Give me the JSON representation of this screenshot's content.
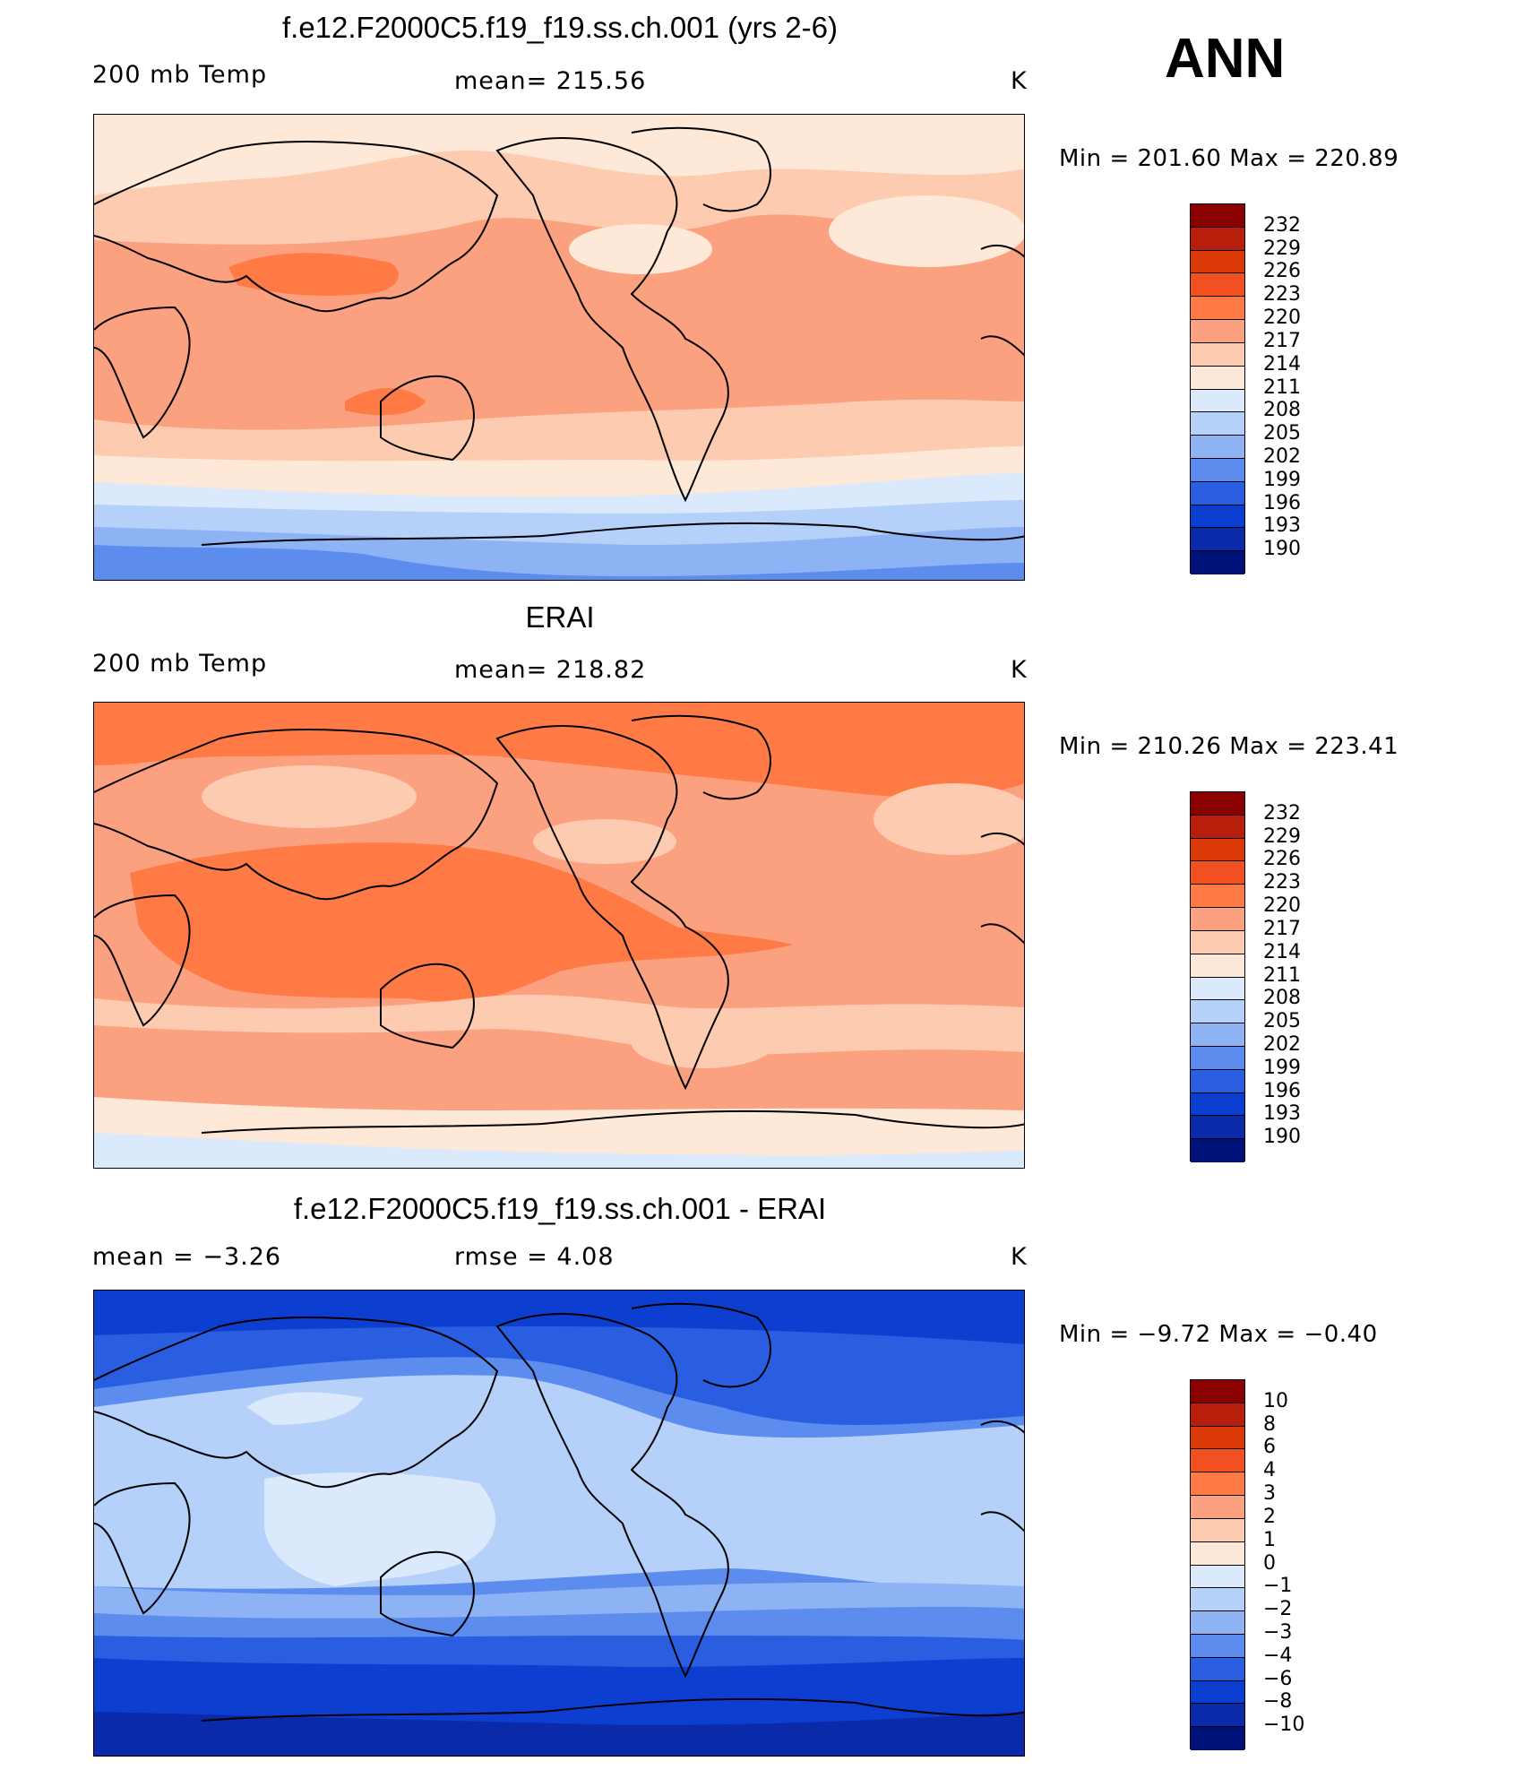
{
  "ann_label": "ANN",
  "chart_data": [
    {
      "type": "heatmap",
      "title": "f.e12.F2000C5.f19_f19.ss.ch.001 (yrs 2-6)",
      "left_label": "200 mb Temp",
      "center_label": "mean=  215.56",
      "units": "K",
      "stats": "Min  =  201.60  Max  =  220.89",
      "colorbar_levels": [
        "232",
        "229",
        "226",
        "223",
        "220",
        "217",
        "214",
        "211",
        "208",
        "205",
        "202",
        "199",
        "196",
        "193",
        "190"
      ],
      "colors": [
        "#8b0000",
        "#b81e0c",
        "#dc3a08",
        "#f25020",
        "#ff7a45",
        "#fca180",
        "#fdcbb0",
        "#fee8d8",
        "#dae9fb",
        "#b5d0f9",
        "#8eb3f5",
        "#5b8cee",
        "#2a5ee0",
        "#0c3fd0",
        "#0a2aaa",
        "#00127a"
      ],
      "mean": 215.56,
      "min": 201.6,
      "max": 220.89
    },
    {
      "type": "heatmap",
      "title": "ERAI",
      "left_label": "200 mb Temp",
      "center_label": "mean=  218.82",
      "units": "K",
      "stats": "Min  =  210.26  Max  =  223.41",
      "colorbar_levels": [
        "232",
        "229",
        "226",
        "223",
        "220",
        "217",
        "214",
        "211",
        "208",
        "205",
        "202",
        "199",
        "196",
        "193",
        "190"
      ],
      "colors": [
        "#8b0000",
        "#b81e0c",
        "#dc3a08",
        "#f25020",
        "#ff7a45",
        "#fca180",
        "#fdcbb0",
        "#fee8d8",
        "#dae9fb",
        "#b5d0f9",
        "#8eb3f5",
        "#5b8cee",
        "#2a5ee0",
        "#0c3fd0",
        "#0a2aaa",
        "#00127a"
      ],
      "mean": 218.82,
      "min": 210.26,
      "max": 223.41
    },
    {
      "type": "heatmap",
      "title": "f.e12.F2000C5.f19_f19.ss.ch.001 - ERAI",
      "left_label": "mean  =     −3.26",
      "center_label": "rmse  =      4.08",
      "units": "K",
      "stats": "Min  =     −9.72  Max  =    −0.40",
      "colorbar_levels": [
        "10",
        "8",
        "6",
        "4",
        "3",
        "2",
        "1",
        "0",
        "−1",
        "−2",
        "−3",
        "−4",
        "−6",
        "−8",
        "−10"
      ],
      "colors": [
        "#8b0000",
        "#b81e0c",
        "#dc3a08",
        "#f25020",
        "#ff7a45",
        "#fca180",
        "#fdcbb0",
        "#fee8d8",
        "#dae9fb",
        "#b5d0f9",
        "#8eb3f5",
        "#5b8cee",
        "#2a5ee0",
        "#0c3fd0",
        "#0a2aaa",
        "#00127a"
      ],
      "mean": -3.26,
      "rmse": 4.08,
      "min": -9.72,
      "max": -0.4
    }
  ]
}
